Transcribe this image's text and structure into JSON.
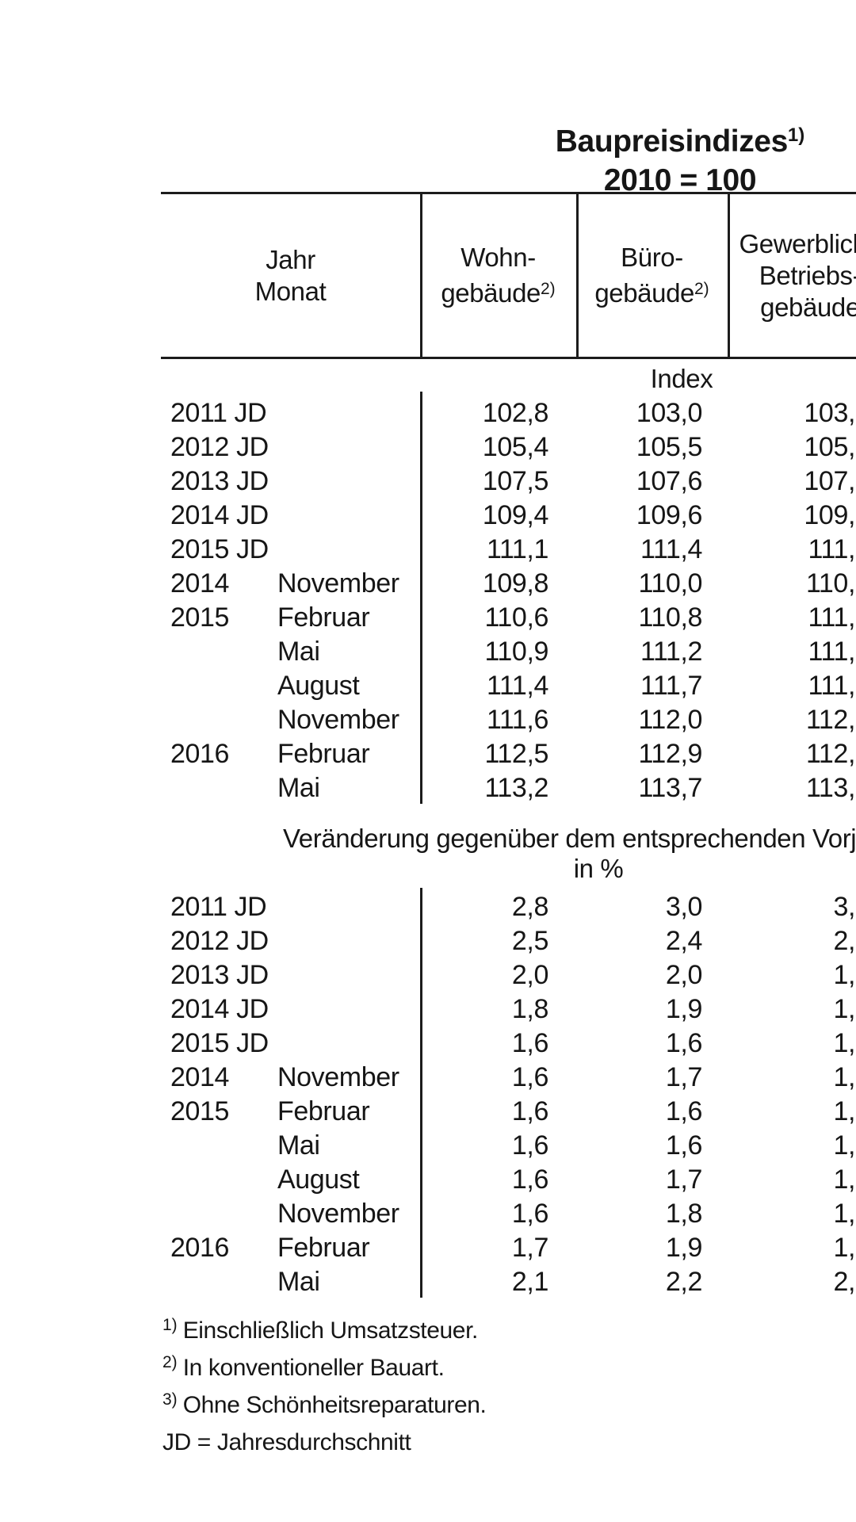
{
  "title": {
    "line1": "Baupreisindizes",
    "line1_sup": "1)",
    "line2": "2010 = 100"
  },
  "table": {
    "col_headers": {
      "jahr_monat": [
        "Jahr",
        "Monat"
      ],
      "wohn": {
        "lines": [
          "Wohn-",
          "gebäude"
        ],
        "sup": "2)"
      },
      "buero": {
        "lines": [
          "Büro-",
          "gebäude"
        ],
        "sup": "2)"
      },
      "gewerblich": {
        "lines": [
          "Gewerbliche",
          "Betriebs-",
          "gebäude"
        ]
      }
    },
    "section_index": {
      "heading": "Index",
      "rows": [
        {
          "year": "2011 JD",
          "month": "",
          "wohn": "102,8",
          "buero": "103,0",
          "gewerblich": "103,"
        },
        {
          "year": "2012 JD",
          "month": "",
          "wohn": "105,4",
          "buero": "105,5",
          "gewerblich": "105,"
        },
        {
          "year": "2013 JD",
          "month": "",
          "wohn": "107,5",
          "buero": "107,6",
          "gewerblich": "107,"
        },
        {
          "year": "2014 JD",
          "month": "",
          "wohn": "109,4",
          "buero": "109,6",
          "gewerblich": "109,"
        },
        {
          "year": "2015 JD",
          "month": "",
          "wohn": "111,1",
          "buero": "111,4",
          "gewerblich": "111,"
        },
        {
          "year": "2014",
          "month": "November",
          "wohn": "109,8",
          "buero": "110,0",
          "gewerblich": "110,"
        },
        {
          "year": "2015",
          "month": "Februar",
          "wohn": "110,6",
          "buero": "110,8",
          "gewerblich": "111,"
        },
        {
          "year": "",
          "month": "Mai",
          "wohn": "110,9",
          "buero": "111,2",
          "gewerblich": "111,"
        },
        {
          "year": "",
          "month": "August",
          "wohn": "111,4",
          "buero": "111,7",
          "gewerblich": "111,"
        },
        {
          "year": "",
          "month": "November",
          "wohn": "111,6",
          "buero": "112,0",
          "gewerblich": "112,"
        },
        {
          "year": "2016",
          "month": "Februar",
          "wohn": "112,5",
          "buero": "112,9",
          "gewerblich": "112,"
        },
        {
          "year": "",
          "month": "Mai",
          "wohn": "113,2",
          "buero": "113,7",
          "gewerblich": "113,"
        }
      ]
    },
    "section_change": {
      "heading": "Veränderung gegenüber dem entsprechenden Vorjahreszeitraum",
      "subheading": "in %",
      "rows": [
        {
          "year": "2011 JD",
          "month": "",
          "wohn": "2,8",
          "buero": "3,0",
          "gewerblich": "3,"
        },
        {
          "year": "2012 JD",
          "month": "",
          "wohn": "2,5",
          "buero": "2,4",
          "gewerblich": "2,"
        },
        {
          "year": "2013 JD",
          "month": "",
          "wohn": "2,0",
          "buero": "2,0",
          "gewerblich": "1,"
        },
        {
          "year": "2014 JD",
          "month": "",
          "wohn": "1,8",
          "buero": "1,9",
          "gewerblich": "1,"
        },
        {
          "year": "2015 JD",
          "month": "",
          "wohn": "1,6",
          "buero": "1,6",
          "gewerblich": "1,"
        },
        {
          "year": "2014",
          "month": "November",
          "wohn": "1,6",
          "buero": "1,7",
          "gewerblich": "1,"
        },
        {
          "year": "2015",
          "month": "Februar",
          "wohn": "1,6",
          "buero": "1,6",
          "gewerblich": "1,"
        },
        {
          "year": "",
          "month": "Mai",
          "wohn": "1,6",
          "buero": "1,6",
          "gewerblich": "1,"
        },
        {
          "year": "",
          "month": "August",
          "wohn": "1,6",
          "buero": "1,7",
          "gewerblich": "1,"
        },
        {
          "year": "",
          "month": "November",
          "wohn": "1,6",
          "buero": "1,8",
          "gewerblich": "1,"
        },
        {
          "year": "2016",
          "month": "Februar",
          "wohn": "1,7",
          "buero": "1,9",
          "gewerblich": "1,"
        },
        {
          "year": "",
          "month": "Mai",
          "wohn": "2,1",
          "buero": "2,2",
          "gewerblich": "2,"
        }
      ]
    }
  },
  "footnotes": [
    {
      "marker": "1)",
      "text": "Einschließlich Umsatzsteuer."
    },
    {
      "marker": "2)",
      "text": "In konventioneller Bauart."
    },
    {
      "marker": "3)",
      "text": "Ohne Schönheitsreparaturen."
    },
    {
      "marker": "",
      "text": "JD = Jahresdurchschnitt"
    }
  ],
  "colors": {
    "text": "#161616",
    "rule": "#1c1c1c",
    "background": "#ffffff"
  }
}
